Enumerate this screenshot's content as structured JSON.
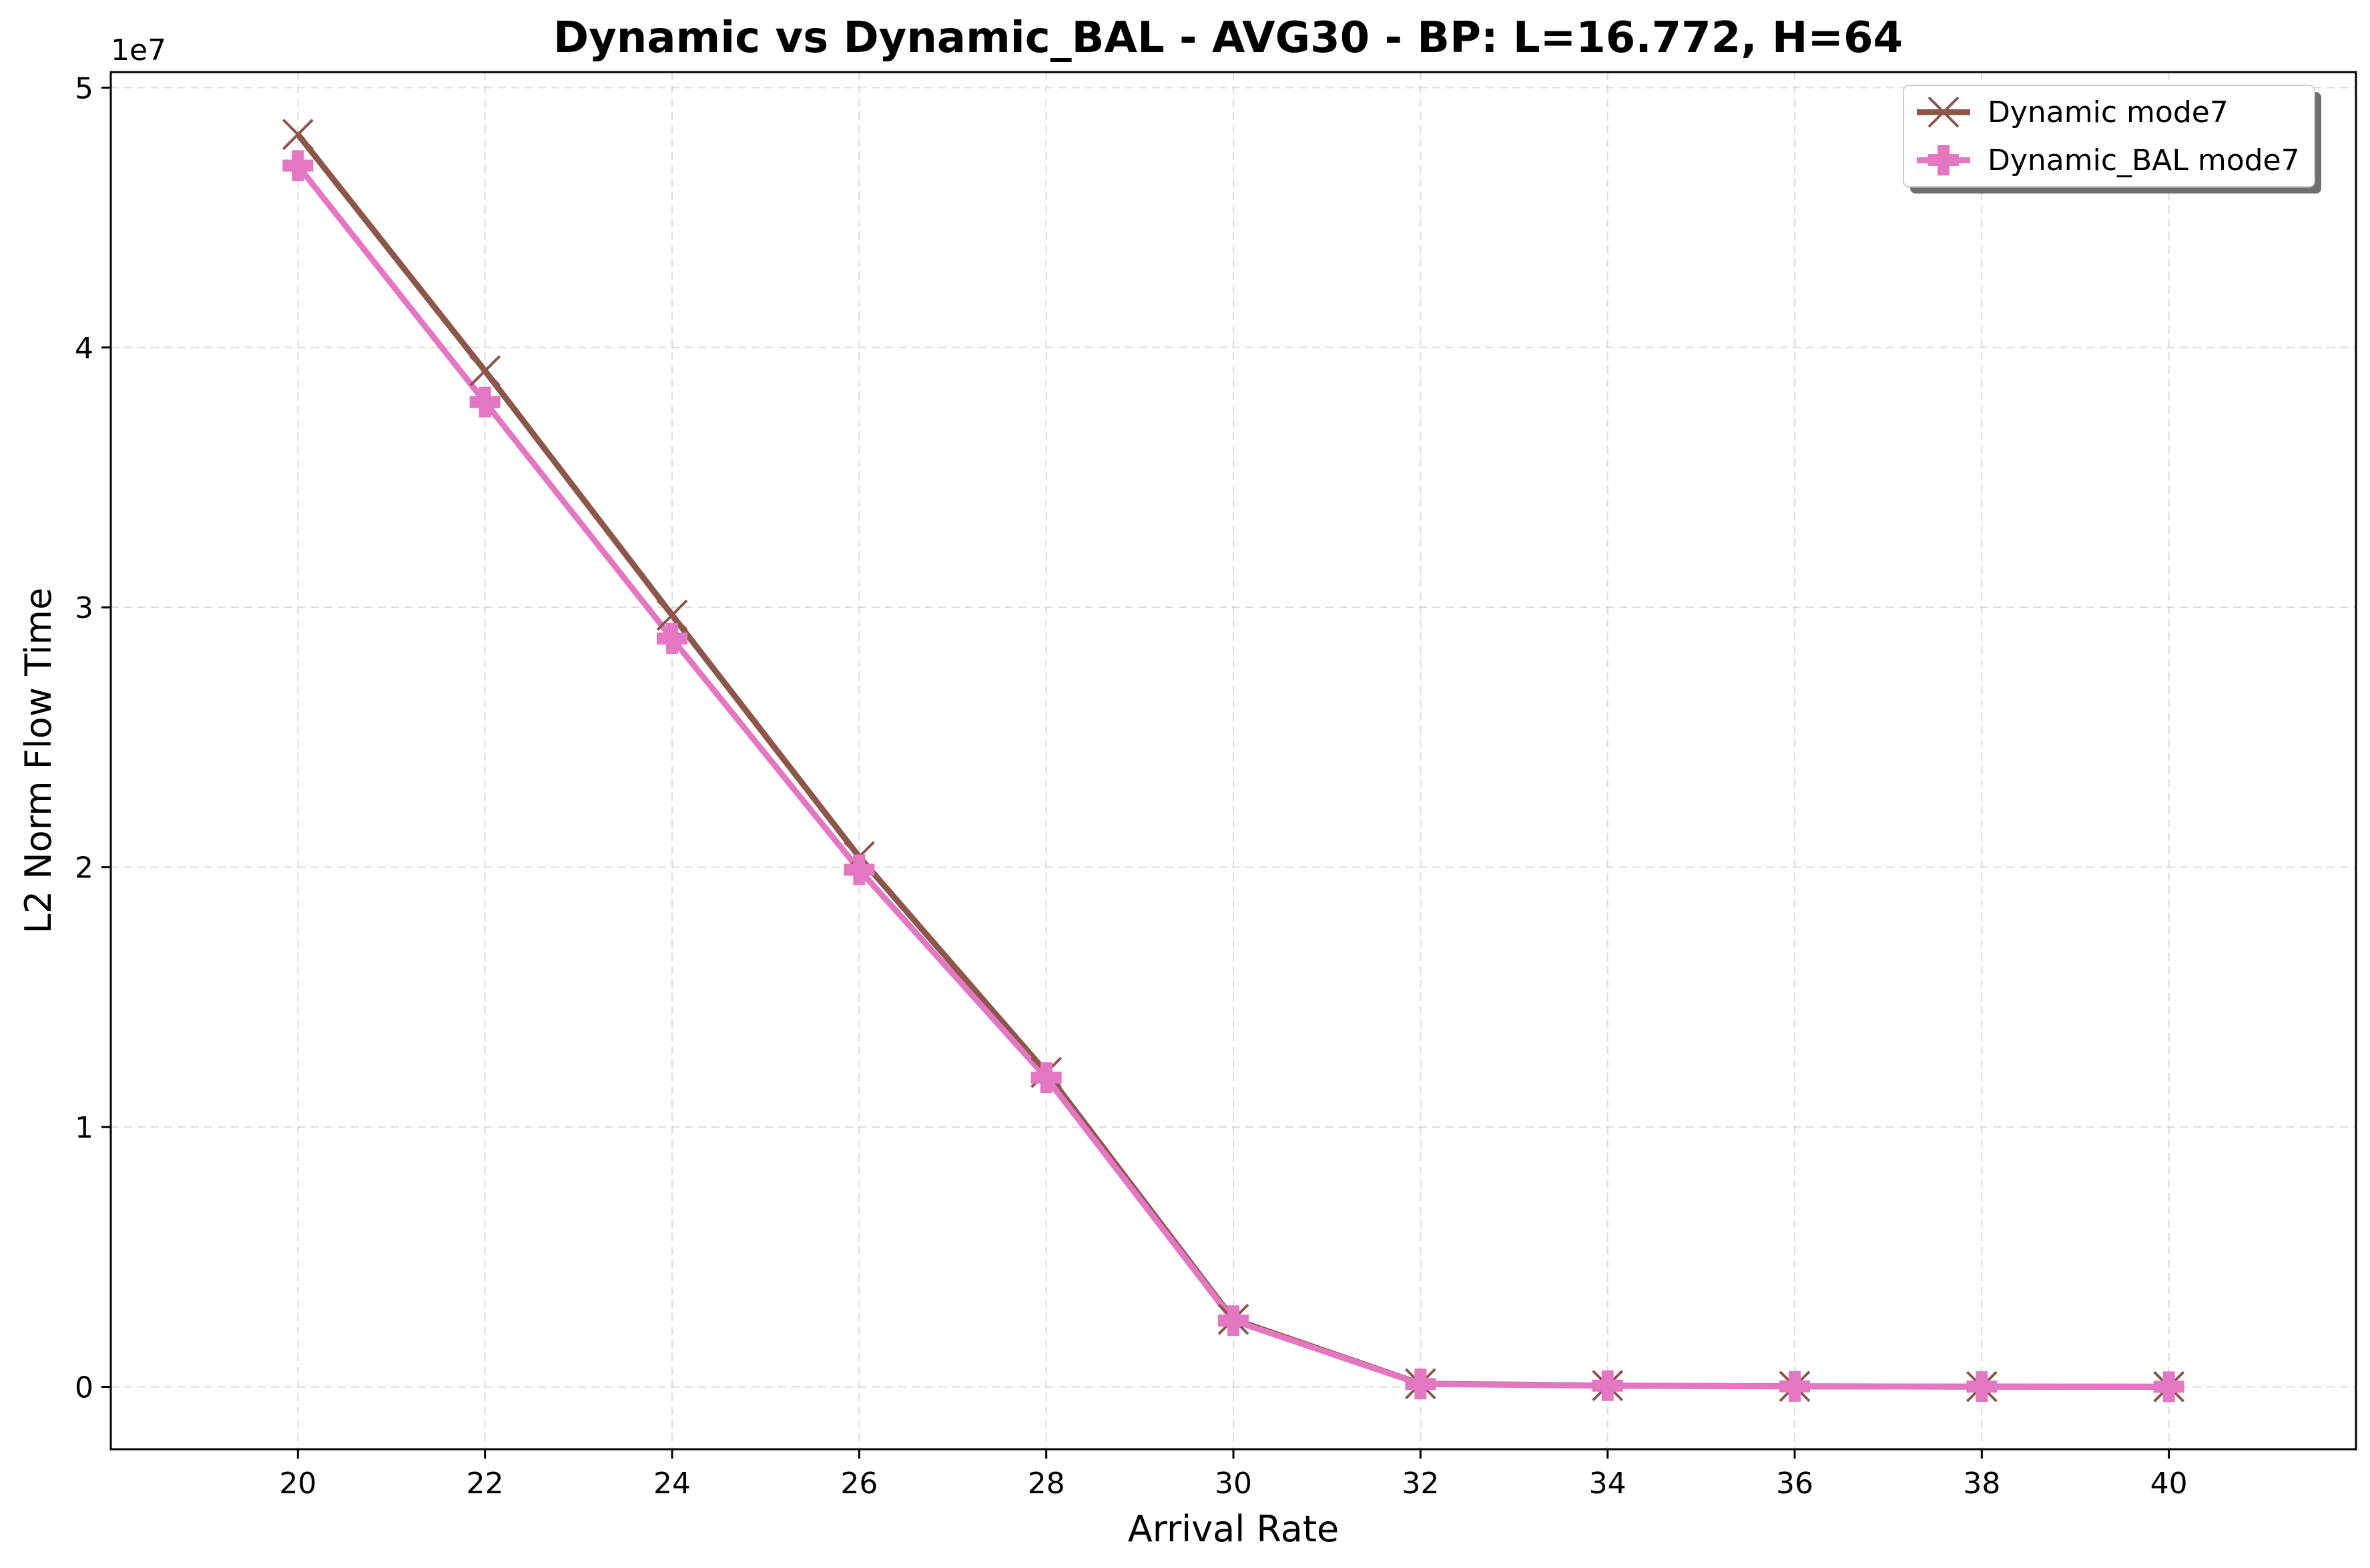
{
  "chart_data": {
    "type": "line",
    "title": "Dynamic vs Dynamic_BAL - AVG30 - BP: L=16.772, H=64",
    "xlabel": "Arrival Rate",
    "ylabel": "L2 Norm Flow Time",
    "y_offset_label": "1e7",
    "x": [
      20,
      22,
      24,
      26,
      28,
      30,
      32,
      34,
      36,
      38,
      40
    ],
    "xlim": [
      18,
      42
    ],
    "ylim": [
      -2400000,
      50600000
    ],
    "x_ticks": [
      20,
      22,
      24,
      26,
      28,
      30,
      32,
      34,
      36,
      38,
      40
    ],
    "y_ticks": [
      0,
      10000000,
      20000000,
      30000000,
      40000000,
      50000000
    ],
    "y_tick_labels": [
      "0",
      "1",
      "2",
      "3",
      "4",
      "5"
    ],
    "grid": true,
    "legend_position": "top-right",
    "series": [
      {
        "name": "Dynamic mode7",
        "color": "#8c564b",
        "marker": "x",
        "values": [
          48200000,
          39100000,
          29700000,
          20400000,
          12100000,
          2600000,
          120000,
          50000,
          20000,
          10000,
          5000
        ]
      },
      {
        "name": "Dynamic_BAL mode7",
        "color": "#e377c2",
        "marker": "plus-filled",
        "values": [
          47000000,
          37900000,
          28800000,
          19900000,
          11900000,
          2550000,
          110000,
          45000,
          18000,
          9000,
          4000
        ]
      }
    ]
  }
}
